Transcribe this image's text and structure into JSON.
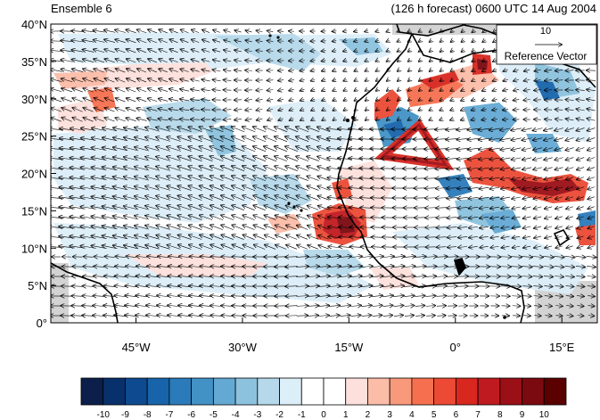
{
  "header": {
    "left_title": "Ensemble 6",
    "right_title": "(126 h forecast) 0600 UTC 14 Aug 2004"
  },
  "reference_vector": {
    "value": "10",
    "label": "Reference Vector"
  },
  "axes": {
    "lat_labels": [
      "0°",
      "5°N",
      "10°N",
      "15°N",
      "20°N",
      "25°N",
      "30°N",
      "35°N",
      "40°N"
    ],
    "lat_values": [
      0,
      5,
      10,
      15,
      20,
      25,
      30,
      35,
      40
    ],
    "lon_labels": [
      "45°W",
      "30°W",
      "15°W",
      "0°",
      "15°E"
    ],
    "lon_values": [
      -45,
      -30,
      -15,
      0,
      15
    ],
    "lat_range": [
      0,
      40
    ],
    "lon_range": [
      -57,
      20
    ]
  },
  "colorbar": {
    "labels": [
      "-10",
      "-9",
      "-8",
      "-7",
      "-6",
      "-5",
      "-4",
      "-3",
      "-2",
      "-1",
      "0",
      "1",
      "2",
      "3",
      "4",
      "5",
      "6",
      "7",
      "8",
      "9",
      "10"
    ],
    "colors": [
      "#0b1f4a",
      "#08306b",
      "#0d4a8f",
      "#1764ab",
      "#2b7bba",
      "#4292c6",
      "#64a9d4",
      "#8cc2de",
      "#b5d9ea",
      "#dceef8",
      "#ffffff",
      "#ffffff",
      "#fde0dc",
      "#fbbca8",
      "#f9997b",
      "#f6704f",
      "#ec4a35",
      "#d7271f",
      "#bf1a1f",
      "#9b0f16",
      "#7a0a10",
      "#5a0000"
    ]
  },
  "colors": {
    "land_outline": "#000000",
    "ocean_missing": "#d3d3d3"
  }
}
